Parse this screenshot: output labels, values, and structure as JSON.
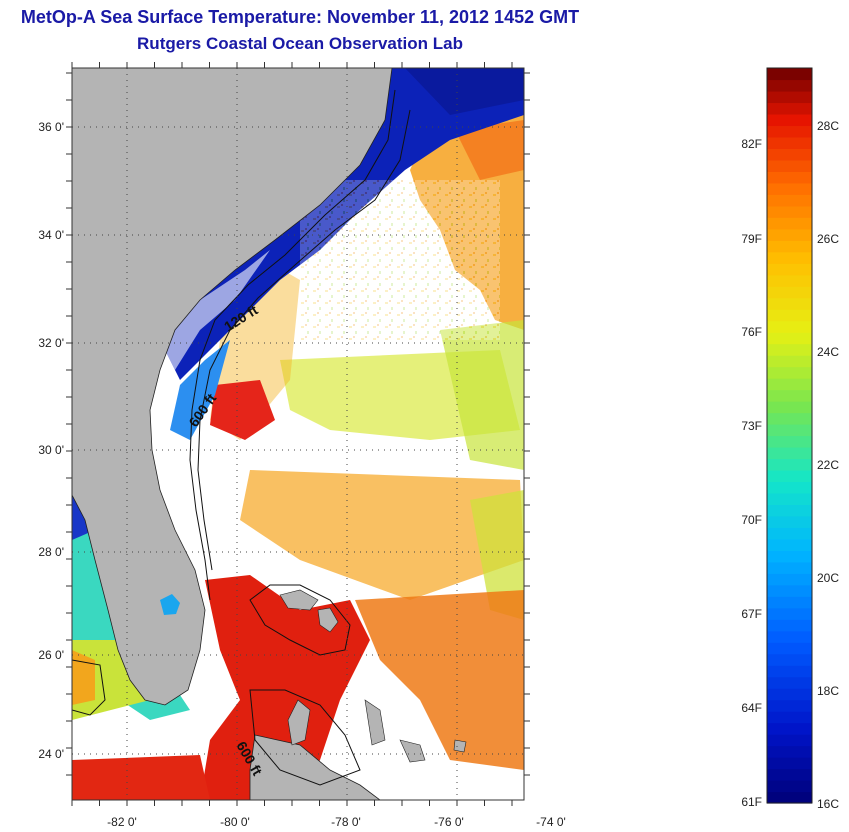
{
  "header": {
    "title": "MetOp-A Sea Surface Temperature:  November 11, 2012 1452 GMT",
    "subtitle": "Rutgers Coastal Ocean Observation Lab"
  },
  "map": {
    "lat_labels": [
      "36 0'",
      "34 0'",
      "32 0'",
      "30 0'",
      "28 0'",
      "26 0'",
      "24 0'"
    ],
    "lon_labels": [
      "-82 0'",
      "-80 0'",
      "-78 0'",
      "-76 0'",
      "-74 0'"
    ],
    "contour_labels": [
      "120 ft",
      "600 ft",
      "600 ft"
    ],
    "colors": {
      "land": "#b4b4b4",
      "cloud": "#ffffff",
      "cold": "#0a1fb4",
      "warm": "#e8200f"
    }
  },
  "colorbar": {
    "fahrenheit_labels": [
      "82F",
      "79F",
      "76F",
      "73F",
      "70F",
      "67F",
      "64F",
      "61F"
    ],
    "celsius_labels": [
      "28C",
      "26C",
      "24C",
      "22C",
      "20C",
      "18C",
      "16C"
    ]
  }
}
